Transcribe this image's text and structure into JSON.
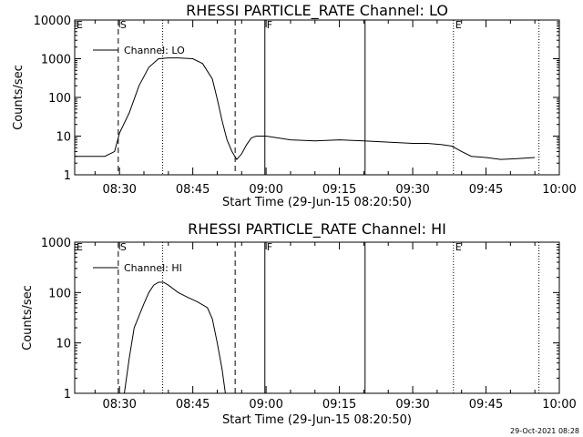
{
  "chart_data": [
    {
      "type": "line",
      "title": "RHESSI PARTICLE_RATE Channel: LO",
      "xlabel": "Start Time (29-Jun-15 08:20:50)",
      "ylabel": "Counts/sec",
      "y_scale": "log",
      "ylim": [
        1,
        10000
      ],
      "y_ticks": [
        "1",
        "10",
        "100",
        "1000",
        "10000"
      ],
      "x_ticks": [
        "08:30",
        "08:45",
        "09:00",
        "09:15",
        "09:30",
        "09:45",
        "10:00"
      ],
      "xlim": [
        "08:20:50",
        "10:00:00"
      ],
      "legend": "Channel: LO",
      "legend_position": "top-left",
      "markers": [
        {
          "label": "E",
          "time": "08:20:50",
          "style": "none"
        },
        {
          "label": "S",
          "time": "08:29:45",
          "style": "dashed"
        },
        {
          "label": "",
          "time": "08:38:50",
          "style": "dotted"
        },
        {
          "label": "",
          "time": "08:53:40",
          "style": "dashed"
        },
        {
          "label": "F",
          "time": "08:59:45",
          "style": "solid"
        },
        {
          "label": "",
          "time": "09:20:15",
          "style": "solid"
        },
        {
          "label": "E",
          "time": "09:38:20",
          "style": "dotted"
        },
        {
          "label": "",
          "time": "09:55:50",
          "style": "dotted"
        }
      ],
      "series": [
        {
          "name": "Channel: LO",
          "x": [
            "08:21",
            "08:24",
            "08:27",
            "08:29",
            "08:30",
            "08:32",
            "08:34",
            "08:36",
            "08:38",
            "08:40",
            "08:42",
            "08:45",
            "08:47",
            "08:49",
            "08:50",
            "08:51",
            "08:52",
            "08:53",
            "08:54",
            "08:55",
            "08:56",
            "08:57",
            "08:58",
            "09:00",
            "09:05",
            "09:10",
            "09:15",
            "09:20",
            "09:25",
            "09:30",
            "09:33",
            "09:36",
            "09:38",
            "09:40",
            "09:42",
            "09:45",
            "09:48",
            "09:51",
            "09:55"
          ],
          "values": [
            3,
            3,
            3,
            4,
            12,
            40,
            200,
            600,
            1000,
            1050,
            1050,
            1000,
            750,
            300,
            90,
            25,
            8,
            4,
            2.5,
            3.5,
            6,
            9,
            10,
            10,
            8,
            7.5,
            8,
            7.5,
            7,
            6.5,
            6.5,
            6,
            5.5,
            4,
            3,
            2.8,
            2.5,
            2.6,
            2.8
          ]
        }
      ]
    },
    {
      "type": "line",
      "title": "RHESSI PARTICLE_RATE Channel: HI",
      "xlabel": "Start Time (29-Jun-15 08:20:50)",
      "ylabel": "Counts/sec",
      "y_scale": "log",
      "ylim": [
        1,
        1000
      ],
      "y_ticks": [
        "1",
        "10",
        "100",
        "1000"
      ],
      "x_ticks": [
        "08:30",
        "08:45",
        "09:00",
        "09:15",
        "09:30",
        "09:45",
        "10:00"
      ],
      "xlim": [
        "08:20:50",
        "10:00:00"
      ],
      "legend": "Channel: HI",
      "legend_position": "top-left",
      "markers": [
        {
          "label": "E",
          "time": "08:20:50",
          "style": "none"
        },
        {
          "label": "S",
          "time": "08:29:45",
          "style": "dashed"
        },
        {
          "label": "",
          "time": "08:38:50",
          "style": "dotted"
        },
        {
          "label": "",
          "time": "08:53:40",
          "style": "dashed"
        },
        {
          "label": "F",
          "time": "08:59:45",
          "style": "solid"
        },
        {
          "label": "",
          "time": "09:20:15",
          "style": "solid"
        },
        {
          "label": "E",
          "time": "09:38:20",
          "style": "dotted"
        },
        {
          "label": "",
          "time": "09:55:50",
          "style": "dotted"
        }
      ],
      "series": [
        {
          "name": "Channel: HI",
          "x": [
            "08:31",
            "08:32",
            "08:33",
            "08:35",
            "08:36",
            "08:37",
            "08:38",
            "08:39",
            "08:40",
            "08:42",
            "08:44",
            "08:46",
            "08:48",
            "08:49",
            "08:50",
            "08:51",
            "08:51:40"
          ],
          "values": [
            1,
            5,
            20,
            60,
            100,
            140,
            160,
            160,
            140,
            100,
            80,
            65,
            50,
            30,
            10,
            3,
            1
          ]
        }
      ]
    }
  ],
  "footer": {
    "stamp": "29-Oct-2021 08:28"
  },
  "colors": {
    "background": "#ffffff",
    "foreground": "#000000"
  }
}
